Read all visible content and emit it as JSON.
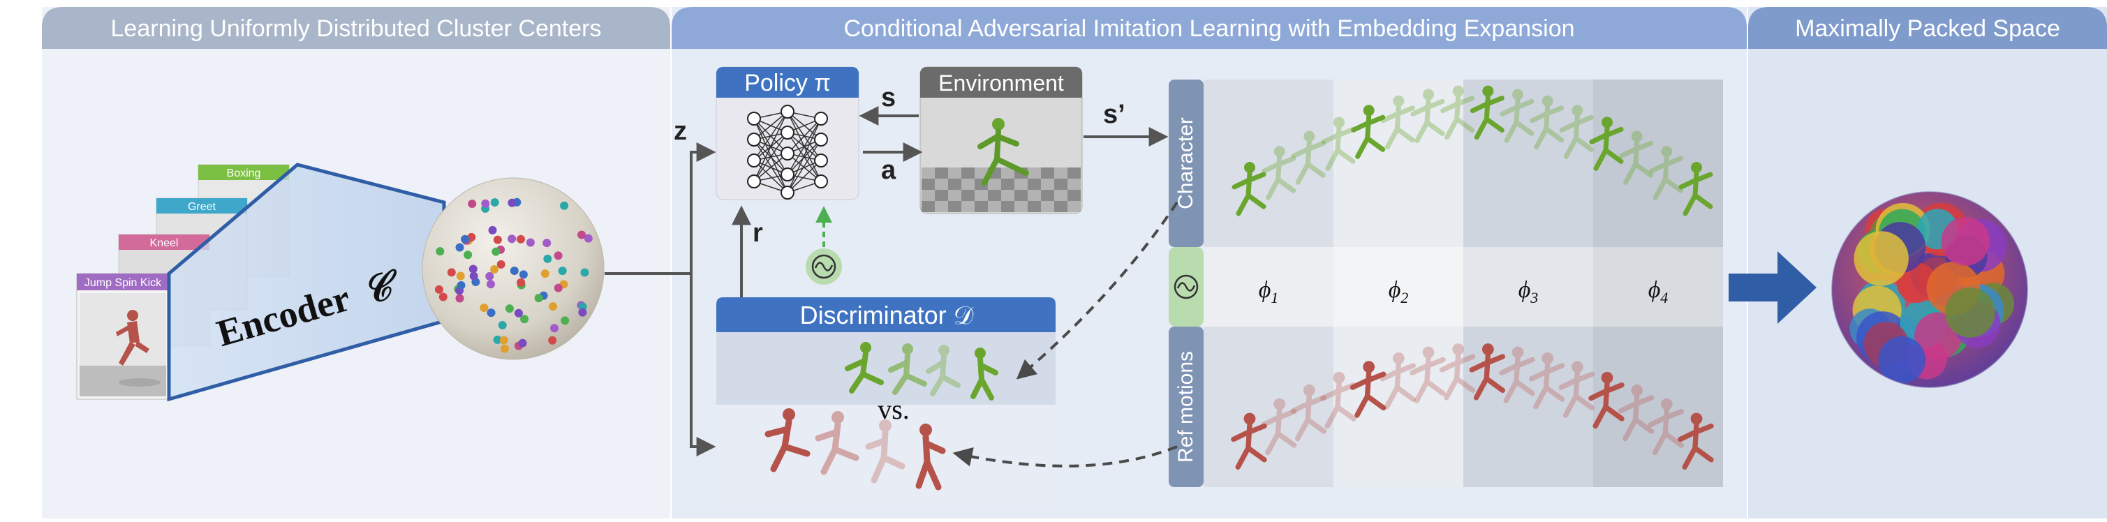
{
  "panels": {
    "left": {
      "title": "Learning Uniformly Distributed Cluster Centers"
    },
    "middle": {
      "title": "Conditional Adversarial Imitation Learning with Embedding Expansion"
    },
    "right": {
      "title": "Maximally Packed Space"
    }
  },
  "motion_cards": [
    {
      "label": "Boxing",
      "color": "#7cc043"
    },
    {
      "label": "Greet",
      "color": "#3fa7c9"
    },
    {
      "label": "Kneel",
      "color": "#d26a9a"
    },
    {
      "label": "Jump Spin Kick",
      "color": "#a06cc3"
    }
  ],
  "encoder": {
    "label": "Encoder",
    "symbol": "𝒞"
  },
  "policy": {
    "label": "Policy π"
  },
  "environment": {
    "label": "Environment"
  },
  "discriminator": {
    "label": "Discriminator 𝒟",
    "vs": "vs."
  },
  "signals": {
    "z": "z",
    "s": "s",
    "a": "a",
    "r": "r",
    "s_prime": "s’"
  },
  "strips": {
    "character": "Character",
    "ref_motions": "Ref motions"
  },
  "phases": [
    "ϕ1",
    "ϕ2",
    "ϕ3",
    "ϕ4"
  ],
  "colors": {
    "header_left": "#a9b6c9",
    "header_mid": "#8ea9d8",
    "header_right": "#7f9bcc",
    "panel_left": "#eef1f7",
    "panel_mid": "#e6ecf6",
    "panel_right": "#dde5f2",
    "module_blue": "#3f73c1",
    "env_gray": "#6b6b6b",
    "arrow_blue": "#2f5ea6",
    "sinus_green": "#b9dcae",
    "character_green": "#6aa62e",
    "ref_red": "#b5524a"
  }
}
